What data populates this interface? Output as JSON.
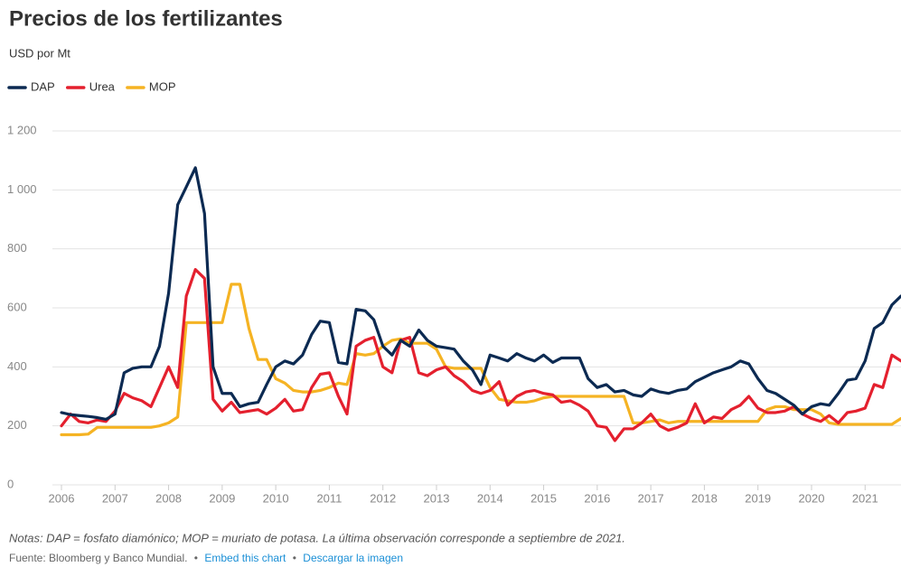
{
  "chart_data": {
    "type": "line",
    "title": "Precios de los fertilizantes",
    "subtitle": "USD por Mt",
    "note": "Notas: DAP = fosfato diamónico; MOP = muriato de potasa. La última observación corresponde a septiembre de 2021.",
    "source": "Fuente: Bloomberg y Banco Mundial.",
    "separator": "•",
    "links": [
      "Embed this chart",
      "Descargar la imagen"
    ],
    "grid": true,
    "legend": "top-left",
    "xlim": [
      2006,
      2021.67
    ],
    "xticks": [
      2006,
      2007,
      2008,
      2009,
      2010,
      2011,
      2012,
      2013,
      2014,
      2015,
      2016,
      2017,
      2018,
      2019,
      2020,
      2021
    ],
    "ylim": [
      0,
      1200
    ],
    "yticks": [
      0,
      200,
      400,
      600,
      800,
      {
        "value": 1000,
        "label": "1 000"
      },
      {
        "value": 1200,
        "label": "1 200"
      }
    ],
    "x": [
      2006,
      2006.17,
      2006.33,
      2006.5,
      2006.67,
      2006.83,
      2007,
      2007.17,
      2007.33,
      2007.5,
      2007.67,
      2007.83,
      2008,
      2008.17,
      2008.33,
      2008.5,
      2008.67,
      2008.83,
      2009,
      2009.17,
      2009.33,
      2009.5,
      2009.67,
      2009.83,
      2010,
      2010.17,
      2010.33,
      2010.5,
      2010.67,
      2010.83,
      2011,
      2011.17,
      2011.33,
      2011.5,
      2011.67,
      2011.83,
      2012,
      2012.17,
      2012.33,
      2012.5,
      2012.67,
      2012.83,
      2013,
      2013.17,
      2013.33,
      2013.5,
      2013.67,
      2013.83,
      2014,
      2014.17,
      2014.33,
      2014.5,
      2014.67,
      2014.83,
      2015,
      2015.17,
      2015.33,
      2015.5,
      2015.67,
      2015.83,
      2016,
      2016.17,
      2016.33,
      2016.5,
      2016.67,
      2016.83,
      2017,
      2017.17,
      2017.33,
      2017.5,
      2017.67,
      2017.83,
      2018,
      2018.17,
      2018.33,
      2018.5,
      2018.67,
      2018.83,
      2019,
      2019.17,
      2019.33,
      2019.5,
      2019.67,
      2019.83,
      2020,
      2020.17,
      2020.33,
      2020.5,
      2020.67,
      2020.83,
      2021,
      2021.17,
      2021.33,
      2021.5,
      2021.67
    ],
    "series": [
      {
        "name": "DAP",
        "color": "#0c2a52",
        "values": [
          245,
          238,
          235,
          232,
          228,
          222,
          240,
          380,
          395,
          400,
          400,
          470,
          650,
          950,
          1010,
          1075,
          920,
          400,
          310,
          310,
          265,
          275,
          280,
          340,
          400,
          420,
          410,
          440,
          510,
          555,
          550,
          415,
          410,
          595,
          590,
          560,
          470,
          440,
          490,
          470,
          525,
          490,
          470,
          465,
          460,
          420,
          390,
          340,
          440,
          430,
          420,
          445,
          430,
          420,
          440,
          415,
          430,
          430,
          430,
          360,
          330,
          340,
          315,
          320,
          305,
          300,
          325,
          315,
          310,
          320,
          325,
          350,
          365,
          380,
          390,
          400,
          420,
          410,
          360,
          320,
          310,
          290,
          270,
          240,
          265,
          275,
          270,
          310,
          355,
          360,
          420,
          530,
          550,
          610,
          640
        ]
      },
      {
        "name": "Urea",
        "color": "#e4202e",
        "values": [
          200,
          240,
          215,
          210,
          220,
          215,
          250,
          310,
          295,
          285,
          265,
          330,
          400,
          330,
          640,
          730,
          700,
          290,
          250,
          280,
          245,
          250,
          255,
          240,
          260,
          290,
          250,
          255,
          330,
          375,
          380,
          300,
          240,
          470,
          490,
          500,
          400,
          380,
          490,
          500,
          380,
          370,
          390,
          400,
          370,
          350,
          320,
          310,
          320,
          350,
          270,
          300,
          315,
          320,
          310,
          305,
          280,
          285,
          270,
          250,
          200,
          195,
          150,
          190,
          190,
          210,
          240,
          200,
          185,
          195,
          210,
          275,
          210,
          230,
          225,
          255,
          270,
          300,
          260,
          245,
          245,
          250,
          265,
          240,
          225,
          215,
          235,
          210,
          245,
          250,
          260,
          340,
          330,
          440,
          420
        ]
      },
      {
        "name": "MOP",
        "color": "#f5b323",
        "values": [
          170,
          170,
          170,
          172,
          195,
          195,
          195,
          195,
          195,
          195,
          195,
          200,
          210,
          230,
          550,
          550,
          550,
          550,
          550,
          680,
          680,
          530,
          425,
          425,
          360,
          345,
          320,
          315,
          315,
          320,
          330,
          345,
          340,
          445,
          440,
          445,
          470,
          490,
          495,
          480,
          480,
          480,
          460,
          400,
          395,
          395,
          395,
          395,
          330,
          290,
          285,
          280,
          280,
          285,
          295,
          300,
          300,
          300,
          300,
          300,
          300,
          300,
          300,
          300,
          210,
          210,
          215,
          220,
          210,
          215,
          215,
          215,
          215,
          215,
          215,
          215,
          215,
          215,
          215,
          255,
          265,
          265,
          255,
          255,
          255,
          240,
          210,
          205,
          205,
          205,
          205,
          205,
          205,
          205,
          225
        ]
      }
    ]
  }
}
